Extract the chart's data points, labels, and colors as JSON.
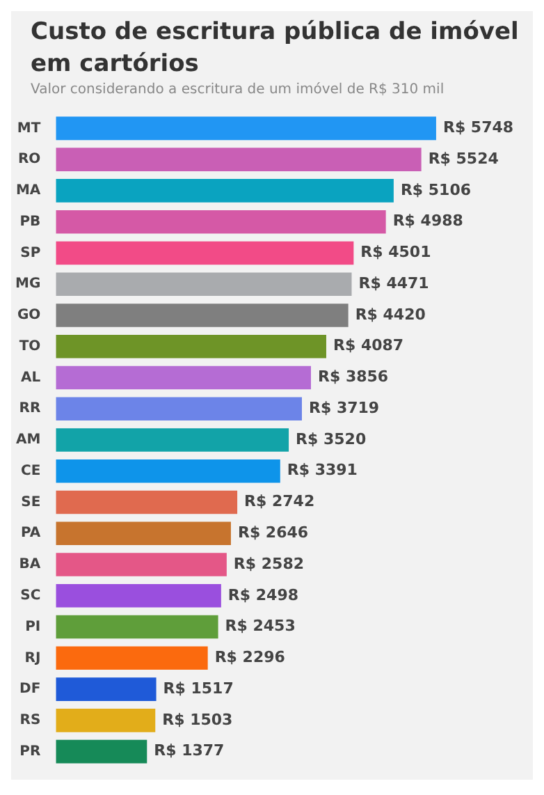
{
  "chart_data": {
    "type": "bar",
    "orientation": "horizontal",
    "title": "Custo de escritura pública de imóvel em cartórios",
    "subtitle": "Valor considerando a escritura de um imóvel de R$ 310 mil",
    "categories": [
      "MT",
      "RO",
      "MA",
      "PB",
      "SP",
      "MG",
      "GO",
      "TO",
      "AL",
      "RR",
      "AM",
      "CE",
      "SE",
      "PA",
      "BA",
      "SC",
      "PI",
      "RJ",
      "DF",
      "RS",
      "PR"
    ],
    "values": [
      5748,
      5524,
      5106,
      4988,
      4501,
      4471,
      4420,
      4087,
      3856,
      3719,
      3520,
      3391,
      2742,
      2646,
      2582,
      2498,
      2453,
      2296,
      1517,
      1503,
      1377
    ],
    "value_labels": [
      "R$ 5748",
      "R$ 5524",
      "R$ 5106",
      "R$ 4988",
      "R$ 4501",
      "R$ 4471",
      "R$ 4420",
      "R$ 4087",
      "R$ 3856",
      "R$ 3719",
      "R$ 3520",
      "R$ 3391",
      "R$ 2742",
      "R$ 2646",
      "R$ 2582",
      "R$ 2498",
      "R$ 2453",
      "R$ 2296",
      "R$ 1517",
      "R$ 1503",
      "R$ 1377"
    ],
    "colors": [
      "#2196f3",
      "#c95fb5",
      "#0aa3c0",
      "#d559a6",
      "#f24b87",
      "#a9abae",
      "#7f7f7f",
      "#6e9427",
      "#b56cd4",
      "#6c84e8",
      "#12a3a8",
      "#0e94ea",
      "#e06a4f",
      "#c7742e",
      "#e45787",
      "#9a4fde",
      "#5f9e3a",
      "#fb6a0e",
      "#1f5ad8",
      "#e2ad1a",
      "#168a58"
    ],
    "legend": false
  }
}
